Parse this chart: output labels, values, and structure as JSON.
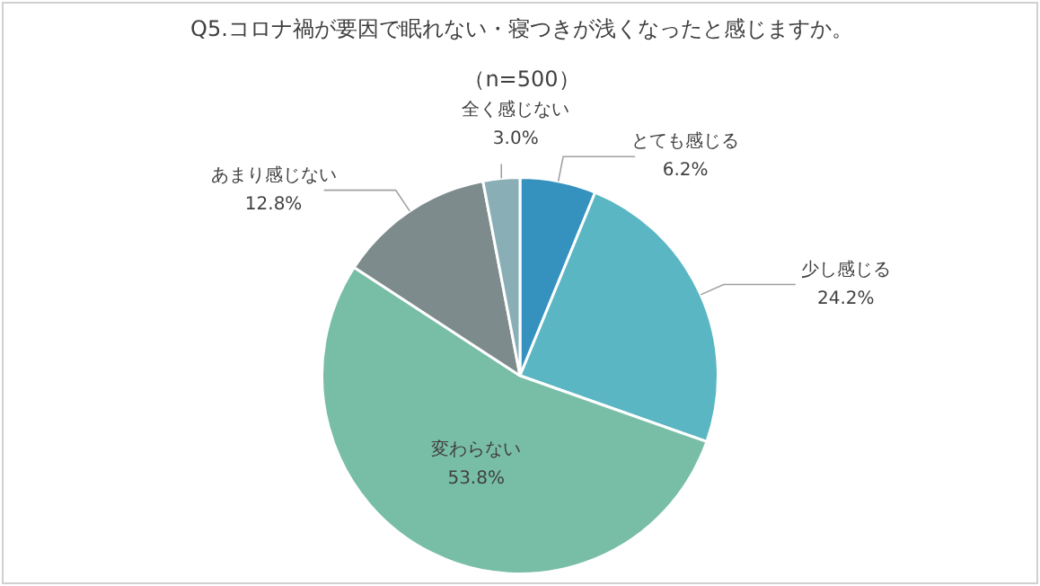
{
  "chart_data": {
    "type": "pie",
    "title": "Q5.コロナ禍が要因で眠れない・寝つきが浅くなったと感じますか。",
    "subtitle": "（n=500）",
    "categories": [
      "とても感じる",
      "少し感じる",
      "変わらない",
      "あまり感じない",
      "全く感じない"
    ],
    "values": [
      6.2,
      24.2,
      53.8,
      12.8,
      3.0
    ],
    "value_labels": [
      "6.2%",
      "24.2%",
      "53.8%",
      "12.8%",
      "3.0%"
    ],
    "colors": [
      "#3592bf",
      "#5bb6c4",
      "#78bea6",
      "#7d8b8c",
      "#8aaeb6"
    ],
    "legend": false
  }
}
